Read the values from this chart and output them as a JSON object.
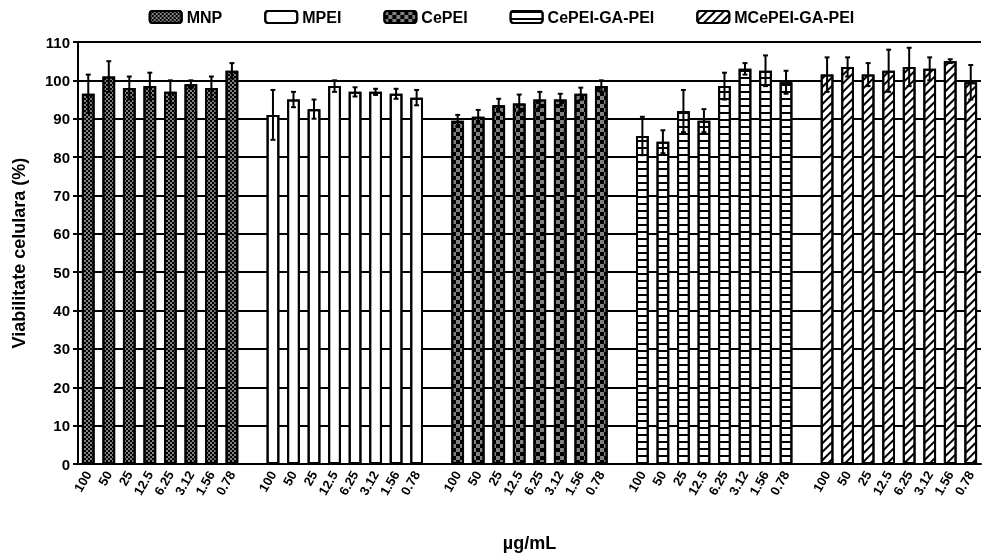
{
  "chart_data": {
    "type": "bar",
    "xlabel": "µg/mL",
    "ylabel": "Viabilitate celulara (%)",
    "categories": [
      "100",
      "50",
      "25",
      "12.5",
      "6.25",
      "3.12",
      "1.56",
      "0.78",
      null,
      "100",
      "50",
      "25",
      "12.5",
      "6.25",
      "3.12",
      "1.56",
      "0.78",
      null,
      "100",
      "50",
      "25",
      "12.5",
      "6.25",
      "3.12",
      "1.56",
      "0.78",
      null,
      "100",
      "50",
      "25",
      "12.5",
      "6.25",
      "3.12",
      "1.56",
      "0.78",
      null,
      "100",
      "50",
      "25",
      "12.5",
      "6.25",
      "3.12",
      "1.56",
      "0.78"
    ],
    "series": [
      {
        "name": "MNP",
        "color": "#808080",
        "values": [
          96.5,
          101,
          98,
          98.5,
          97,
          99,
          98,
          102.5,
          null,
          null,
          null,
          null,
          null,
          null,
          null,
          null,
          null,
          null,
          null,
          null,
          null,
          null,
          null,
          null,
          null,
          null,
          null,
          null,
          null,
          null,
          null,
          null,
          null,
          null,
          null,
          null,
          null,
          null,
          null,
          null,
          null,
          null,
          null,
          null
        ],
        "errors": [
          5,
          4,
          3,
          3.5,
          3,
          1,
          3,
          2,
          null,
          null,
          null,
          null,
          null,
          null,
          null,
          null,
          null,
          null,
          null,
          null,
          null,
          null,
          null,
          null,
          null,
          null,
          null,
          null,
          null,
          null,
          null,
          null,
          null,
          null,
          null,
          null,
          null,
          null,
          null,
          null,
          null,
          null,
          null,
          null
        ]
      },
      {
        "name": "MPEI",
        "color": "#ffffff",
        "values": [
          null,
          null,
          null,
          null,
          null,
          null,
          null,
          null,
          null,
          91,
          95,
          92.5,
          98.5,
          97,
          97,
          96.5,
          95.5,
          null,
          null,
          null,
          null,
          null,
          null,
          null,
          null,
          null,
          null,
          null,
          null,
          null,
          null,
          null,
          null,
          null,
          null,
          null,
          null,
          null,
          null,
          null,
          null,
          null,
          null,
          null
        ],
        "errors": [
          null,
          null,
          null,
          null,
          null,
          null,
          null,
          null,
          null,
          6.5,
          2,
          2.5,
          1.5,
          1.2,
          0.8,
          1.3,
          2,
          null,
          null,
          null,
          null,
          null,
          null,
          null,
          null,
          null,
          null,
          null,
          null,
          null,
          null,
          null,
          null,
          null,
          null,
          null,
          null,
          null,
          null,
          null,
          null,
          null,
          null,
          null
        ]
      },
      {
        "name": "CePEI",
        "color": "#808080",
        "values": [
          null,
          null,
          null,
          null,
          null,
          null,
          null,
          null,
          null,
          null,
          null,
          null,
          null,
          null,
          null,
          null,
          null,
          null,
          89.5,
          90.5,
          93.5,
          94,
          95,
          95,
          96.5,
          98.5,
          null,
          null,
          null,
          null,
          null,
          null,
          null,
          null,
          null,
          null,
          null,
          null,
          null,
          null,
          null,
          null,
          null,
          null
        ],
        "errors": [
          null,
          null,
          null,
          null,
          null,
          null,
          null,
          null,
          null,
          null,
          null,
          null,
          null,
          null,
          null,
          null,
          null,
          null,
          1.5,
          1.8,
          1.7,
          2.3,
          2,
          1.5,
          1.6,
          1.5,
          null,
          null,
          null,
          null,
          null,
          null,
          null,
          null,
          null,
          null,
          null,
          null,
          null,
          null,
          null,
          null,
          null,
          null
        ]
      },
      {
        "name": "CePEI-GA-PEI",
        "color": "#ffffff",
        "values": [
          null,
          null,
          null,
          null,
          null,
          null,
          null,
          null,
          null,
          null,
          null,
          null,
          null,
          null,
          null,
          null,
          null,
          null,
          null,
          null,
          null,
          null,
          null,
          null,
          null,
          null,
          null,
          85.5,
          84,
          92,
          89.5,
          98.5,
          103,
          102.5,
          99.5,
          null,
          null,
          null,
          null,
          null,
          null,
          null,
          null,
          null
        ],
        "errors": [
          null,
          null,
          null,
          null,
          null,
          null,
          null,
          null,
          null,
          null,
          null,
          null,
          null,
          null,
          null,
          null,
          null,
          null,
          null,
          null,
          null,
          null,
          null,
          null,
          null,
          null,
          null,
          5,
          3,
          5.5,
          3,
          3.5,
          1.5,
          4,
          3,
          null,
          null,
          null,
          null,
          null,
          null,
          null,
          null,
          null
        ]
      },
      {
        "name": "MCePEI-GA-PEI",
        "color": "#ffffff",
        "values": [
          null,
          null,
          null,
          null,
          null,
          null,
          null,
          null,
          null,
          null,
          null,
          null,
          null,
          null,
          null,
          null,
          null,
          null,
          null,
          null,
          null,
          null,
          null,
          null,
          null,
          null,
          null,
          null,
          null,
          null,
          null,
          null,
          null,
          null,
          null,
          null,
          101.5,
          103.5,
          101.5,
          102.5,
          103.5,
          103,
          105,
          99.5
        ],
        "errors": [
          null,
          null,
          null,
          null,
          null,
          null,
          null,
          null,
          null,
          null,
          null,
          null,
          null,
          null,
          null,
          null,
          null,
          null,
          null,
          null,
          null,
          null,
          null,
          null,
          null,
          null,
          null,
          null,
          null,
          null,
          null,
          null,
          null,
          null,
          null,
          null,
          4.5,
          2.5,
          3,
          5.5,
          5,
          3,
          0.5,
          4.5
        ]
      }
    ],
    "ylim": [
      0,
      110
    ],
    "yticks": [
      0,
      10,
      20,
      30,
      40,
      50,
      60,
      70,
      80,
      90,
      100,
      110
    ],
    "grid": "y",
    "legend": "top"
  }
}
